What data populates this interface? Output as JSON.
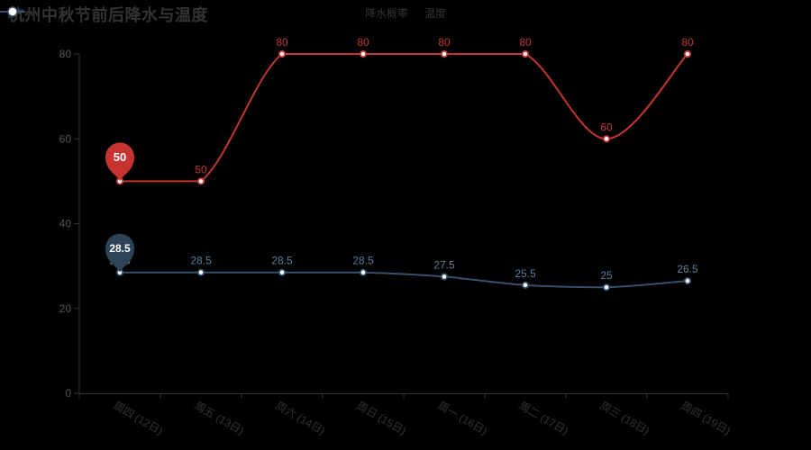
{
  "title": "杭州中秋节前后降水与温度",
  "legend": {
    "items": [
      {
        "label": "降水概率",
        "color": "#c23531"
      },
      {
        "label": "温度",
        "color": "#36506a"
      }
    ]
  },
  "chart_data": {
    "type": "line",
    "title": "杭州中秋节前后降水与温度",
    "categories": [
      "周四 (12日)",
      "周五 (13日)",
      "周六 (14日)",
      "周日 (15日)",
      "周一 (16日)",
      "周二 (17日)",
      "周三 (18日)",
      "周四 (19日)"
    ],
    "series": [
      {
        "name": "降水概率",
        "values": [
          50,
          50,
          80,
          80,
          80,
          80,
          60,
          80
        ],
        "color": "#c23531",
        "label_color": "#c23531",
        "smooth": true,
        "markpoint": {
          "index": 0,
          "label": "50",
          "color": "#c5342e"
        }
      },
      {
        "name": "温度",
        "values": [
          28.5,
          28.5,
          28.5,
          28.5,
          27.5,
          25.5,
          25,
          26.5
        ],
        "color": "#36506a",
        "label_color": "#5e7d9c",
        "smooth": true,
        "markpoint": {
          "index": 0,
          "label": "28.5",
          "color": "#2e4355"
        }
      }
    ],
    "ylim": [
      0,
      80
    ],
    "yticks": [
      0,
      20,
      40,
      60,
      80
    ],
    "xlabel_rotate": 30,
    "grid": false,
    "legend_position": "top-center",
    "background": "#000000",
    "axis_color": "#333333",
    "ytick_label_color": "#555555",
    "xtick_label_color": "#333333"
  }
}
